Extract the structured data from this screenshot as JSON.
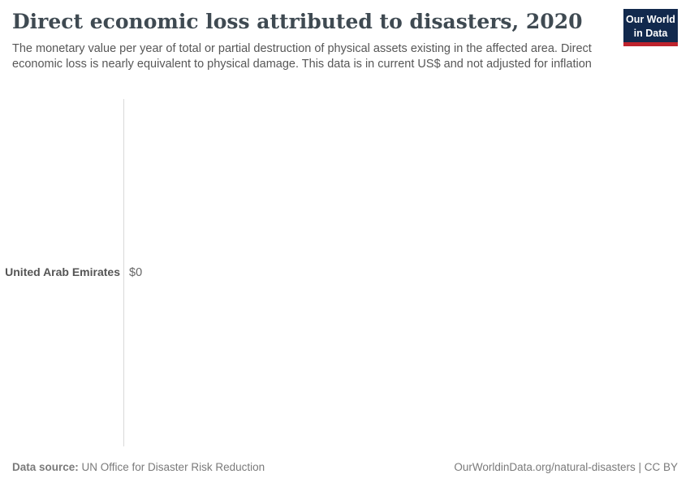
{
  "header": {
    "title": "Direct economic loss attributed to disasters, 2020",
    "subtitle": "The monetary value per year of total or partial destruction of physical assets existing in the affected area. Direct economic loss is nearly equivalent to physical damage. This data is in current US$ and not adjusted for inflation",
    "logo": {
      "line1": "Our World",
      "line2": "in Data"
    }
  },
  "chart_data": {
    "type": "bar",
    "orientation": "horizontal",
    "title": "Direct economic loss attributed to disasters, 2020",
    "categories": [
      "United Arab Emirates"
    ],
    "values": [
      0
    ],
    "value_labels": [
      "$0"
    ],
    "unit": "current US$",
    "xlabel": "",
    "ylabel": "",
    "grid": false,
    "legend": false,
    "axis": {
      "baseline_value": 0
    }
  },
  "footer": {
    "source_label": "Data source:",
    "source_value": " UN Office for Disaster Risk Reduction",
    "license": "OurWorldinData.org/natural-disasters | CC BY"
  },
  "colors": {
    "title": "#3f4a52",
    "subtitle": "#575757",
    "axis_line": "#dadada",
    "entity_label": "#555555",
    "value_label": "#666666",
    "footer": "#7a7a7a",
    "logo_bg": "#12294d",
    "logo_stripe": "#be232d"
  }
}
